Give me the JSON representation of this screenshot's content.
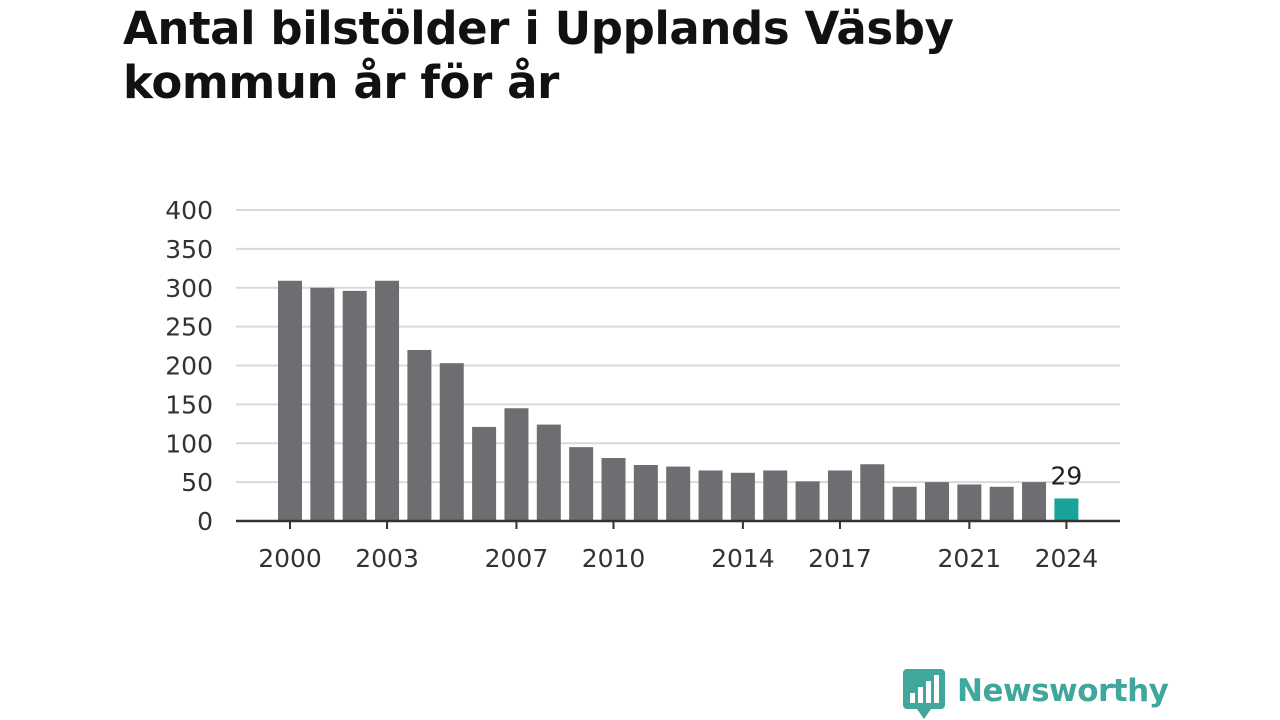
{
  "chart_data": {
    "type": "bar",
    "title": "Antal bilstölder i Upplands Väsby kommun år för år",
    "xlabel": "",
    "ylabel": "",
    "ylim": [
      0,
      400
    ],
    "yticks": [
      0,
      50,
      100,
      150,
      200,
      250,
      300,
      350,
      400
    ],
    "xtick_labels": [
      "2000",
      "2003",
      "2007",
      "2010",
      "2014",
      "2017",
      "2021",
      "2024"
    ],
    "grid": true,
    "legend": "none",
    "categories": [
      "2000",
      "2001",
      "2002",
      "2003",
      "2004",
      "2005",
      "2006",
      "2007",
      "2008",
      "2009",
      "2010",
      "2011",
      "2012",
      "2013",
      "2014",
      "2015",
      "2016",
      "2017",
      "2018",
      "2019",
      "2020",
      "2021",
      "2022",
      "2023",
      "2024"
    ],
    "values": [
      309,
      300,
      296,
      309,
      220,
      203,
      121,
      145,
      124,
      95,
      81,
      72,
      70,
      65,
      62,
      65,
      51,
      65,
      73,
      44,
      50,
      47,
      44,
      50,
      29
    ],
    "highlight": {
      "category": "2024",
      "label": "29"
    },
    "colors": {
      "bar": "#6e6d72",
      "highlight": "#1aa39a"
    }
  },
  "branding": {
    "logo_text": "Newsworthy",
    "icon": "newsworthy-chart-bubble-icon",
    "color": "#3fa79c"
  }
}
